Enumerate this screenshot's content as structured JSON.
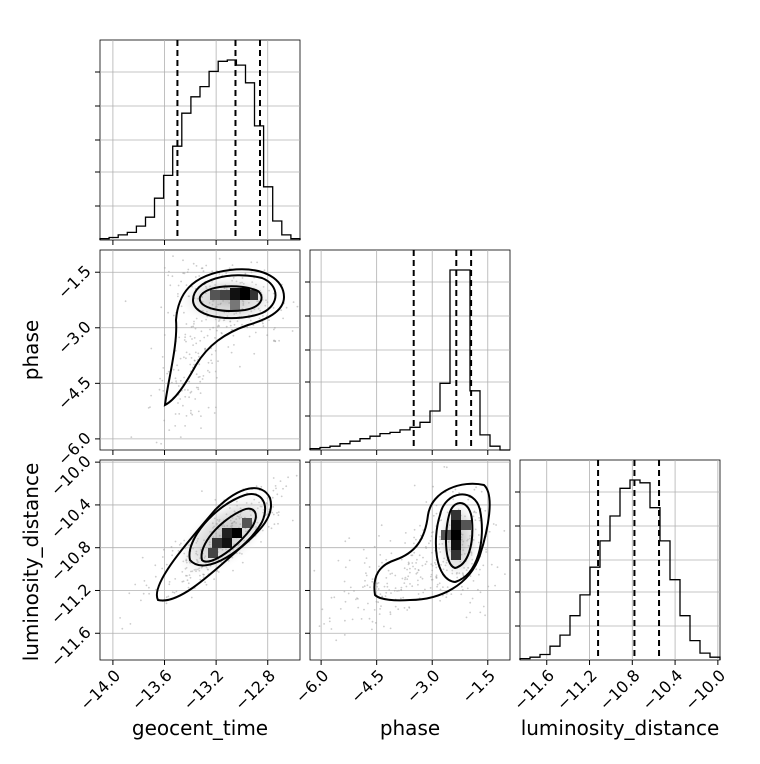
{
  "chart_data": {
    "type": "corner",
    "parameters": [
      "geocent_time",
      "phase",
      "luminosity_distance"
    ],
    "ticks": {
      "geocent_time": [
        "−14.0",
        "−13.6",
        "−13.2",
        "−12.8"
      ],
      "phase": [
        "−6.0",
        "−4.5",
        "−3.0",
        "−1.5"
      ],
      "luminosity_distance": [
        "−11.6",
        "−11.2",
        "−10.8",
        "−10.4",
        "−10.0"
      ]
    },
    "tick_values": {
      "geocent_time": [
        -14.0,
        -13.6,
        -13.2,
        -12.8
      ],
      "phase": [
        -6.0,
        -4.5,
        -3.0,
        -1.5
      ],
      "luminosity_distance": [
        -11.6,
        -11.2,
        -10.8,
        -10.4,
        -10.0
      ]
    },
    "ranges": {
      "geocent_time": [
        -14.1,
        -12.55
      ],
      "phase": [
        -6.3,
        -0.9
      ],
      "luminosity_distance": [
        -11.85,
        -9.98
      ]
    },
    "quantiles": {
      "geocent_time": [
        -13.5,
        -13.05,
        -12.86
      ],
      "phase": [
        -3.5,
        -2.35,
        -1.95
      ],
      "luminosity_distance": [
        -11.12,
        -10.78,
        -10.55
      ]
    },
    "histograms": {
      "geocent_time": {
        "edges_range": [
          -14.1,
          -12.55
        ],
        "counts": [
          1,
          2,
          4,
          6,
          11,
          18,
          33,
          51,
          74,
          100,
          113,
          121,
          133,
          141,
          142,
          138,
          124,
          90,
          42,
          15,
          4,
          1
        ]
      },
      "phase": {
        "edges_range": [
          -6.3,
          -0.9
        ],
        "counts": [
          1,
          2,
          3,
          5,
          7,
          9,
          11,
          13,
          14,
          16,
          18,
          22,
          31,
          53,
          143,
          143,
          47,
          12,
          3,
          0
        ]
      },
      "luminosity_distance": {
        "edges_range": [
          -11.85,
          -9.98
        ],
        "counts": [
          1,
          2,
          4,
          10,
          18,
          32,
          47,
          67,
          86,
          104,
          124,
          130,
          128,
          110,
          86,
          58,
          32,
          14,
          5,
          2
        ]
      }
    },
    "grid": true,
    "color": "#000000"
  }
}
